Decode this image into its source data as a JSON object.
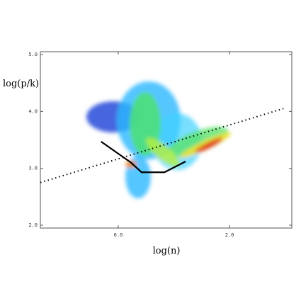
{
  "chart_data": {
    "type": "line",
    "xlabel": "log(n)",
    "ylabel": "log(p/k)",
    "xlim": [
      -1.4,
      3.12
    ],
    "ylim": [
      1.95,
      5.05
    ],
    "xticks": [
      {
        "value": 0,
        "label": "0.0"
      },
      {
        "value": 2,
        "label": "2.0"
      }
    ],
    "yticks": [
      {
        "value": 2,
        "label": "2.0"
      },
      {
        "value": 3,
        "label": "3.0"
      },
      {
        "value": 4,
        "label": "4.0"
      },
      {
        "value": 5,
        "label": "5.0"
      }
    ],
    "series": [
      {
        "x": [
          -1.4,
          2.97
        ],
        "values": [
          2.75,
          4.05
        ],
        "color": "#000000",
        "line_style": "dotted"
      },
      {
        "x": [
          -0.31,
          0.23,
          0.42,
          0.83,
          1.21
        ],
        "values": [
          3.47,
          3.1,
          2.93,
          2.93,
          3.12
        ],
        "color": "#000000",
        "line_style": "solid"
      }
    ]
  }
}
